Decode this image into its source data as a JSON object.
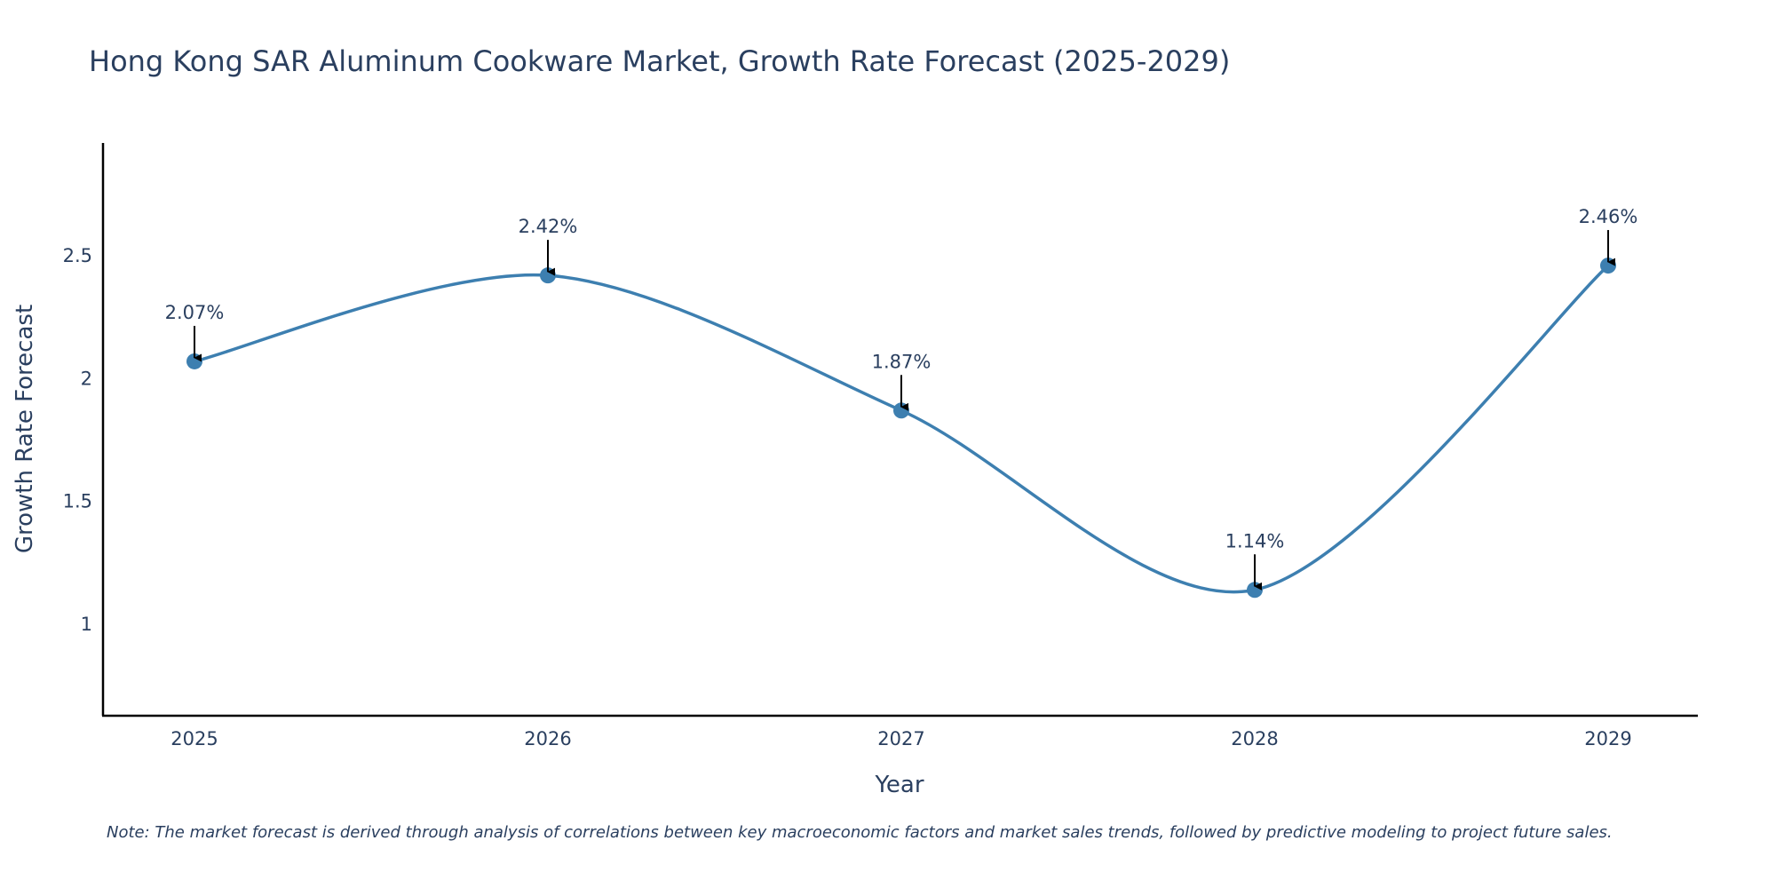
{
  "chart_data": {
    "type": "line",
    "title": "Hong Kong SAR Aluminum Cookware Market, Growth Rate Forecast (2025-2029)",
    "xlabel": "Year",
    "ylabel": "Growth Rate Forecast",
    "x": [
      "2025",
      "2026",
      "2027",
      "2028",
      "2029"
    ],
    "y": [
      2.07,
      2.42,
      1.87,
      1.14,
      2.46
    ],
    "data_labels": [
      "2.07%",
      "2.42%",
      "1.87%",
      "1.14%",
      "2.46%"
    ],
    "yticks": [
      1,
      1.5,
      2,
      2.5
    ],
    "ytick_labels": [
      "1",
      "1.5",
      "2",
      "2.5"
    ],
    "ylim": [
      0.63,
      2.95
    ],
    "line_color": "#3d7fb0",
    "marker_color": "#3d7fb0",
    "grid": false,
    "note": "Note: The market forecast is derived through analysis of correlations between key macroeconomic factors and market sales trends, followed by predictive modeling to project future sales."
  }
}
